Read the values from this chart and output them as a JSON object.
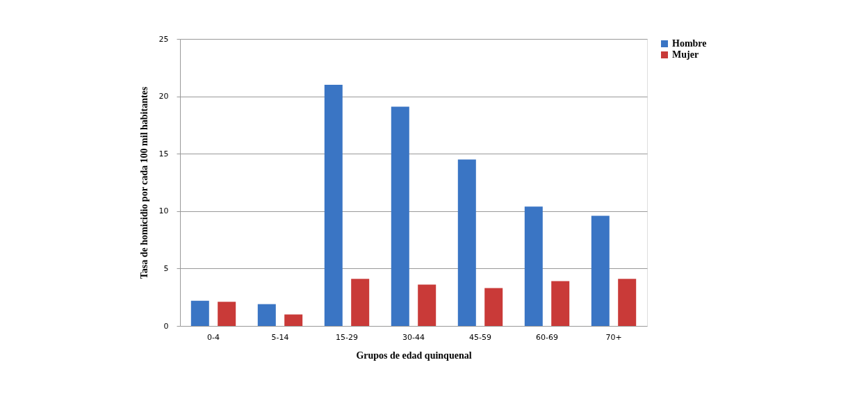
{
  "chart_data": {
    "type": "bar",
    "xlabel": "Grupos de edad quinquenal",
    "ylabel": "Tasa de homicidio por cada 100 mil habitantes",
    "categories": [
      "0-4",
      "5-14",
      "15-29",
      "30-44",
      "45-59",
      "60-69",
      "70+"
    ],
    "series": [
      {
        "name": "Hombre",
        "color": "#3a75c4",
        "values": [
          2.2,
          1.9,
          21.0,
          19.1,
          14.5,
          10.4,
          9.6
        ]
      },
      {
        "name": "Mujer",
        "color": "#c93a38",
        "values": [
          2.1,
          1.0,
          4.1,
          3.6,
          3.3,
          3.9,
          4.1
        ]
      }
    ],
    "ylim": [
      0,
      25
    ],
    "yticks": [
      0,
      5,
      10,
      15,
      20,
      25
    ],
    "grid": "y",
    "legend": "right"
  }
}
